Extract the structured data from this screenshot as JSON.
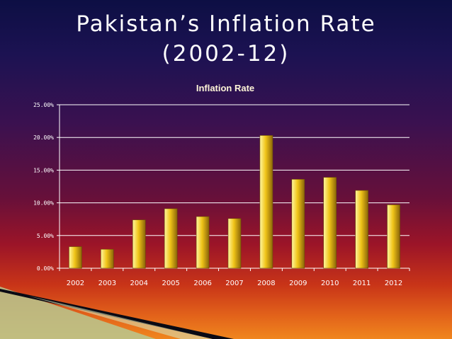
{
  "slide": {
    "title_line1": "Pakistan’s Inflation Rate",
    "title_line2": "(2002-12)"
  },
  "colors": {
    "bar_light": "#fff6a0",
    "bar_mid": "#f0c418",
    "bar_dark": "#8a6508",
    "gridline": "#ffffff"
  },
  "chart_data": {
    "type": "bar",
    "title": "Inflation Rate",
    "categories": [
      "2002",
      "2003",
      "2004",
      "2005",
      "2006",
      "2007",
      "2008",
      "2009",
      "2010",
      "2011",
      "2012"
    ],
    "values": [
      3.3,
      2.9,
      7.4,
      9.1,
      7.9,
      7.6,
      20.3,
      13.6,
      13.9,
      11.9,
      9.7
    ],
    "y_tick_labels": [
      "0.00%",
      "5.00%",
      "10.00%",
      "15.00%",
      "20.00%",
      "25.00%"
    ],
    "y_ticks": [
      0,
      5,
      10,
      15,
      20,
      25
    ],
    "ylim": [
      0,
      25
    ],
    "unit": "%",
    "grid": true,
    "legend": "none",
    "xlabel": "",
    "ylabel": ""
  }
}
